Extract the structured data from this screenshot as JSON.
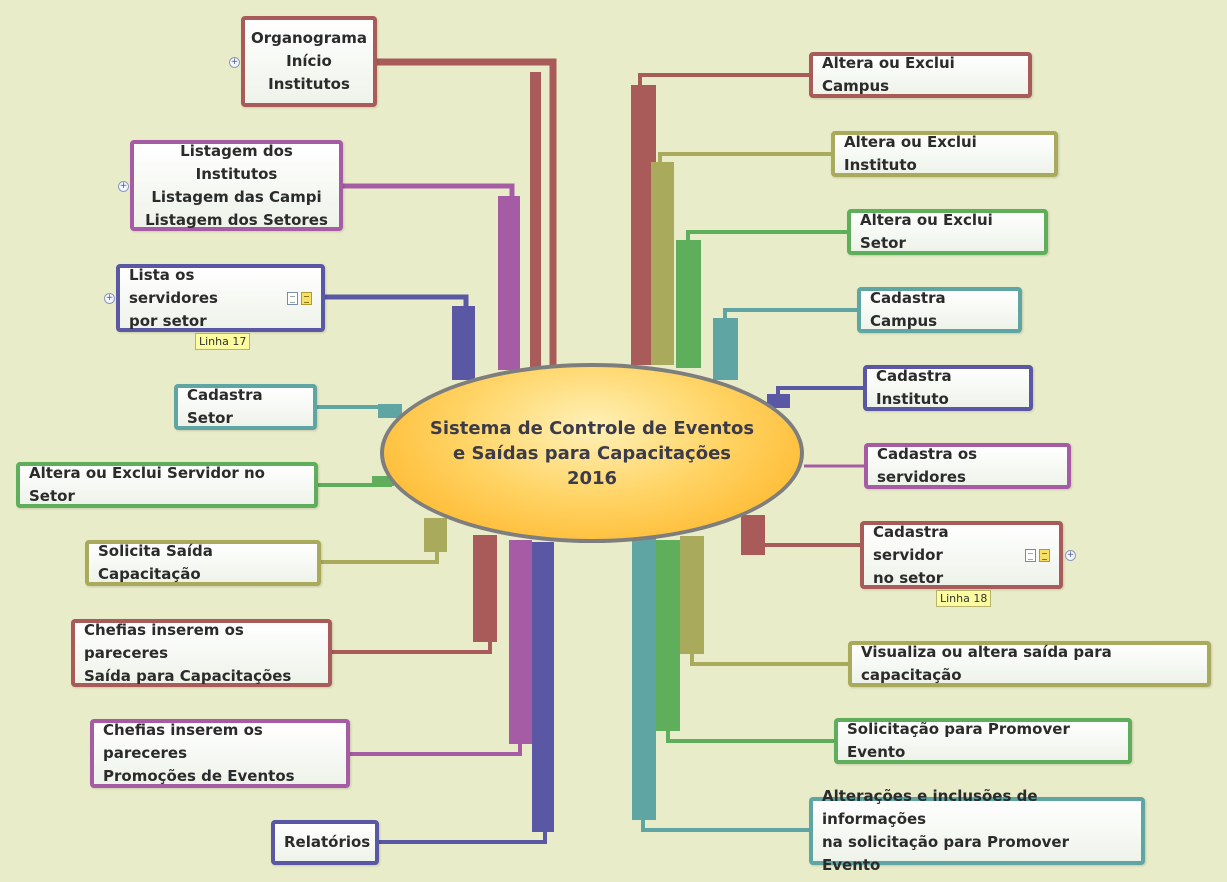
{
  "central": {
    "title": "Sistema de Controle de Eventos\ne Saídas para Capacitações\n2016"
  },
  "left_topics": [
    {
      "label": "Organograma\nInício\nInstitutos",
      "color": "#a85b59",
      "collapsed": true
    },
    {
      "label": "Listagem dos Institutos\nListagem das Campi\nListagem dos Setores",
      "color": "#a55ca5",
      "collapsed": true
    },
    {
      "label": "Lista os servidores\npor setor",
      "color": "#5a57a5",
      "collapsed": true,
      "icons": [
        "document-icon",
        "note-icon"
      ],
      "tag": "Linha 17"
    },
    {
      "label": "Cadastra Setor",
      "color": "#5fa5a3"
    },
    {
      "label": "Altera ou Exclui Servidor no Setor",
      "color": "#5fae5c"
    },
    {
      "label": "Solicita Saída Capacitação",
      "color": "#a9aa5c"
    },
    {
      "label": "Chefias inserem os pareceres\nSaída para Capacitações",
      "color": "#a85b59"
    },
    {
      "label": "Chefias inserem os pareceres\nPromoções de Eventos",
      "color": "#a55ca5"
    },
    {
      "label": "Relatórios",
      "color": "#5a57a5"
    }
  ],
  "right_topics": [
    {
      "label": "Altera ou Exclui Campus",
      "color": "#a85b59"
    },
    {
      "label": "Altera ou Exclui Instituto",
      "color": "#a9aa5c"
    },
    {
      "label": "Altera ou Exclui Setor",
      "color": "#5fae5c"
    },
    {
      "label": "Cadastra Campus",
      "color": "#5fa5a3"
    },
    {
      "label": "Cadastra Instituto",
      "color": "#5a57a5"
    },
    {
      "label": "Cadastra os servidores",
      "color": "#a55ca5"
    },
    {
      "label": "Cadastra servidor\nno setor",
      "color": "#a85b59",
      "collapsed": true,
      "icons": [
        "document-icon",
        "note-icon"
      ],
      "tag": "Linha 18"
    },
    {
      "label": "Visualiza ou altera saída para capacitação",
      "color": "#a9aa5c"
    },
    {
      "label": "Solicitação para Promover Evento",
      "color": "#5fae5c"
    },
    {
      "label": "Alterações e inclusões de informações\nna solicitação para Promover Evento",
      "color": "#5fa5a3"
    }
  ],
  "expand_icon": "+"
}
